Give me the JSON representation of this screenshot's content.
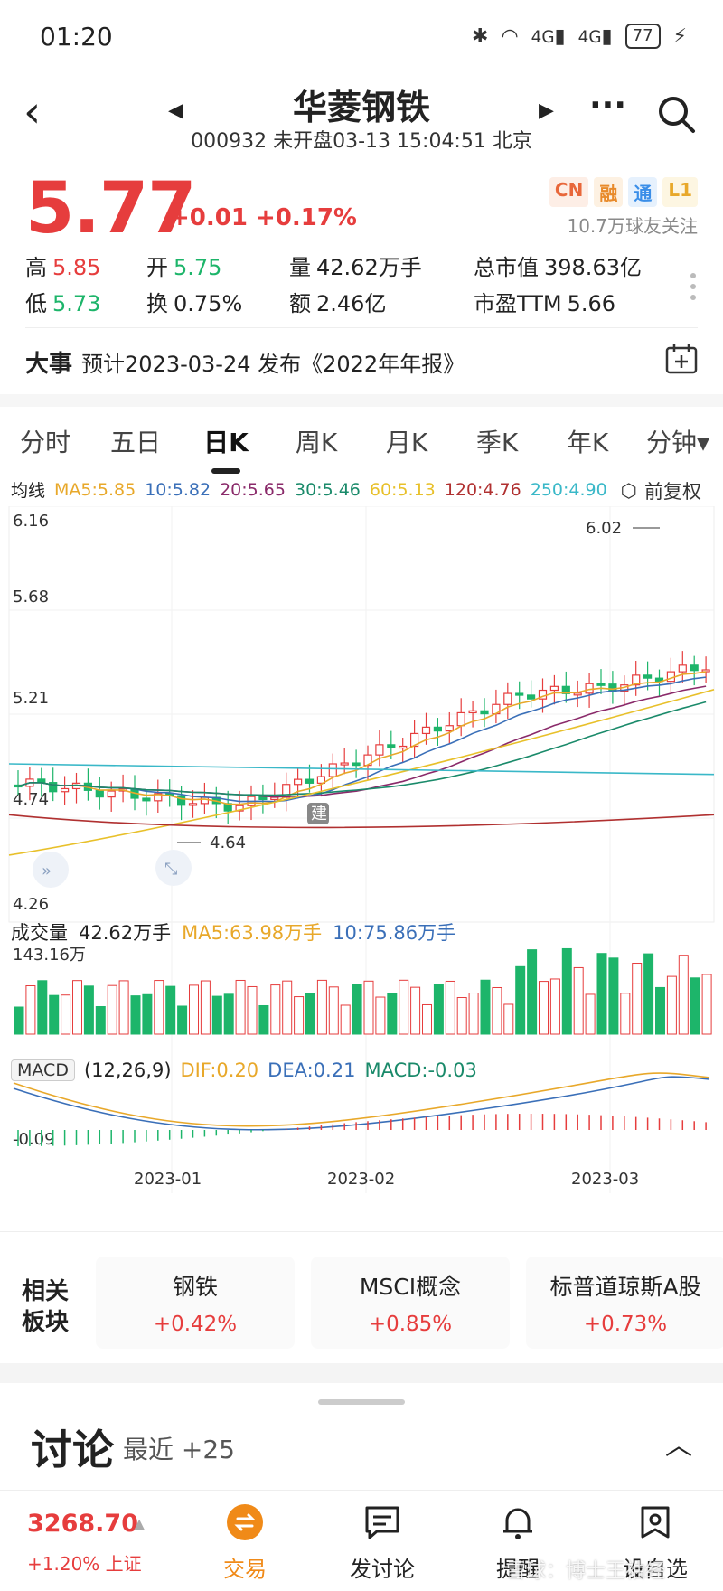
{
  "status_bar": {
    "time": "01:20",
    "network_1": "4G",
    "network_2": "4G",
    "battery": "77"
  },
  "header": {
    "title": "华菱钢铁",
    "subtitle": "000932 未开盘03-13 15:04:51 北京"
  },
  "quote": {
    "price": "5.77",
    "change": "+0.01 +0.17%",
    "badges": [
      {
        "label": "CN",
        "color": "#e8673a",
        "bg": "#fdeee6"
      },
      {
        "label": "融",
        "color": "#e88a2a",
        "bg": "#fdf1e2"
      },
      {
        "label": "通",
        "color": "#3a8ee8",
        "bg": "#e6f1fd"
      },
      {
        "label": "L1",
        "color": "#e8a82a",
        "bg": "#fdf6e2"
      }
    ],
    "followers": "10.7万球友关注",
    "high_label": "高",
    "high": "5.85",
    "open_label": "开",
    "open": "5.75",
    "volume_label": "量",
    "volume": "42.62万手",
    "mktcap_label": "总市值",
    "mktcap": "398.63亿",
    "low_label": "低",
    "low": "5.73",
    "turnover_label": "换",
    "turnover": "0.75%",
    "amount_label": "额",
    "amount": "2.46亿",
    "pe_label": "市盈TTM",
    "pe": "5.66"
  },
  "event": {
    "tag": "大事",
    "text": "预计2023-03-24 发布《2022年年报》"
  },
  "tabs": [
    "分时",
    "五日",
    "日K",
    "周K",
    "月K",
    "季K",
    "年K",
    "分钟▾"
  ],
  "ma_legend": {
    "label": "均线",
    "items": [
      {
        "text": "MA5:5.85",
        "color": "#e8a82a"
      },
      {
        "text": "10:5.82",
        "color": "#3a6fb8"
      },
      {
        "text": "20:5.65",
        "color": "#8a2a6a"
      },
      {
        "text": "30:5.46",
        "color": "#1a8a6a"
      },
      {
        "text": "60:5.13",
        "color": "#e8c02a"
      },
      {
        "text": "120:4.76",
        "color": "#b03030"
      },
      {
        "text": "250:4.90",
        "color": "#3ab8c8"
      }
    ],
    "restore": "前复权"
  },
  "chart_data": {
    "type": "candlestick",
    "price_axis": [
      "6.16",
      "5.68",
      "5.21",
      "4.74",
      "4.26"
    ],
    "ylim": [
      4.26,
      6.16
    ],
    "annotations": {
      "high": "6.02",
      "low": "4.64",
      "marker": "建"
    },
    "x_labels": [
      "2023-01",
      "2023-02",
      "2023-03"
    ],
    "volume": {
      "label": "成交量",
      "value": "42.62万手",
      "ma5": "MA5:63.98万手",
      "ma10": "10:75.86万手",
      "max_label": "143.16万"
    },
    "macd": {
      "label": "MACD",
      "params": "(12,26,9)",
      "dif": "DIF:0.20",
      "dea": "DEA:0.21",
      "macd": "MACD:-0.03",
      "top": "0.23",
      "bottom": "-0.09"
    }
  },
  "sectors": {
    "heading": "相关\n板块",
    "items": [
      {
        "name": "钢铁",
        "pct": "+0.42%"
      },
      {
        "name": "MSCI概念",
        "pct": "+0.85%"
      },
      {
        "name": "标普道琼斯A股",
        "pct": "+0.73%"
      }
    ]
  },
  "discussion": {
    "title": "讨论",
    "recent": "最近 +25"
  },
  "bottom_nav": {
    "index_value": "3268.70",
    "index_change": "+1.20% 上证",
    "items": [
      {
        "label": "交易"
      },
      {
        "label": "发讨论"
      },
      {
        "label": "提醒"
      },
      {
        "label": "设自选"
      }
    ],
    "watermark": "雪球：博士王袖经"
  }
}
